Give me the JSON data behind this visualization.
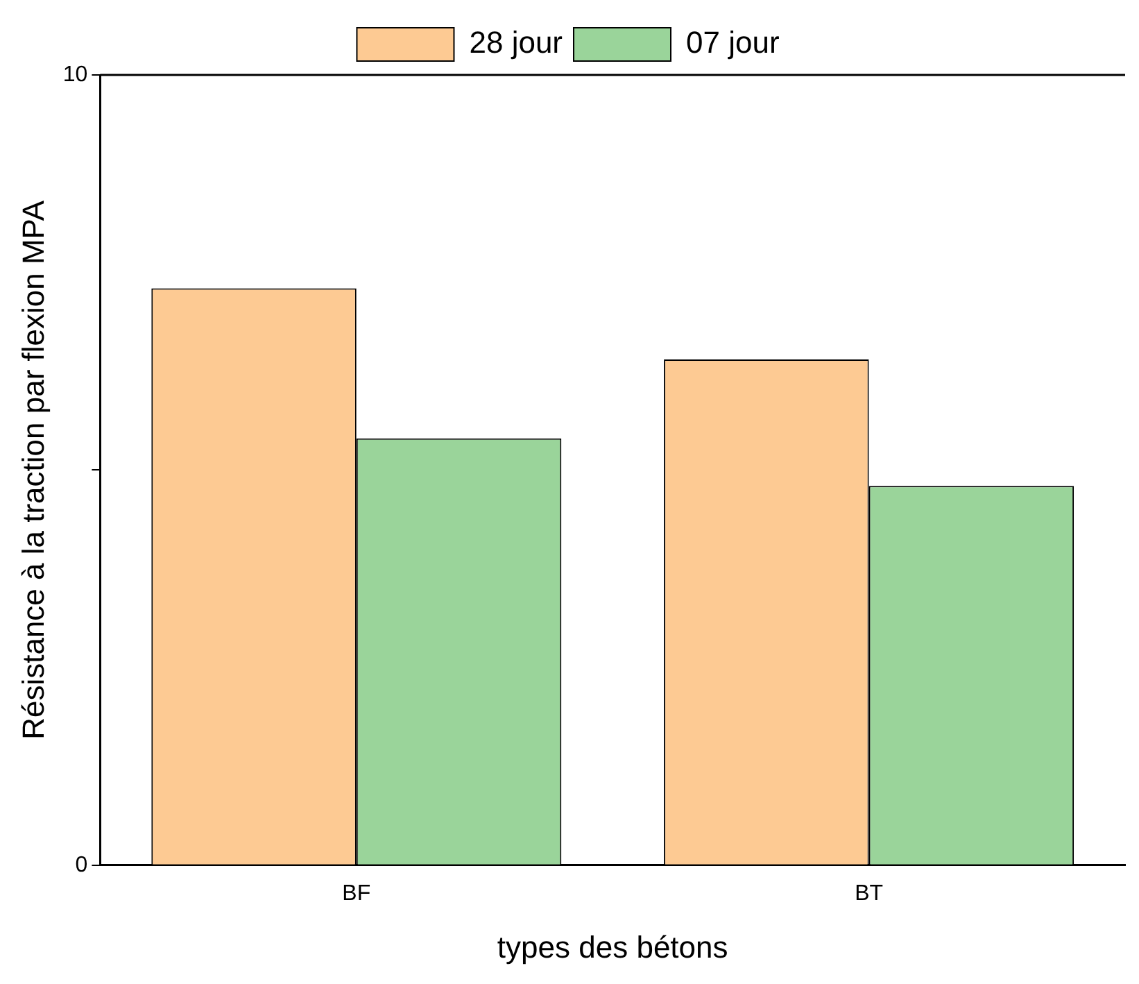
{
  "chart_data": {
    "type": "bar",
    "xlabel": "types des bétons",
    "ylabel": "Résistance à la traction par flexion MPA",
    "categories": [
      "BF",
      "BT"
    ],
    "series": [
      {
        "name": "28 jour",
        "color": "#fdca93",
        "values": [
          7.3,
          6.4
        ]
      },
      {
        "name": "07 jour",
        "color": "#9ad49a",
        "values": [
          5.4,
          4.8
        ]
      }
    ],
    "ylim": [
      0,
      10
    ],
    "yticks": [
      0,
      {
        "value": 5,
        "label": null
      },
      10
    ],
    "grid": false,
    "legend": "top"
  }
}
